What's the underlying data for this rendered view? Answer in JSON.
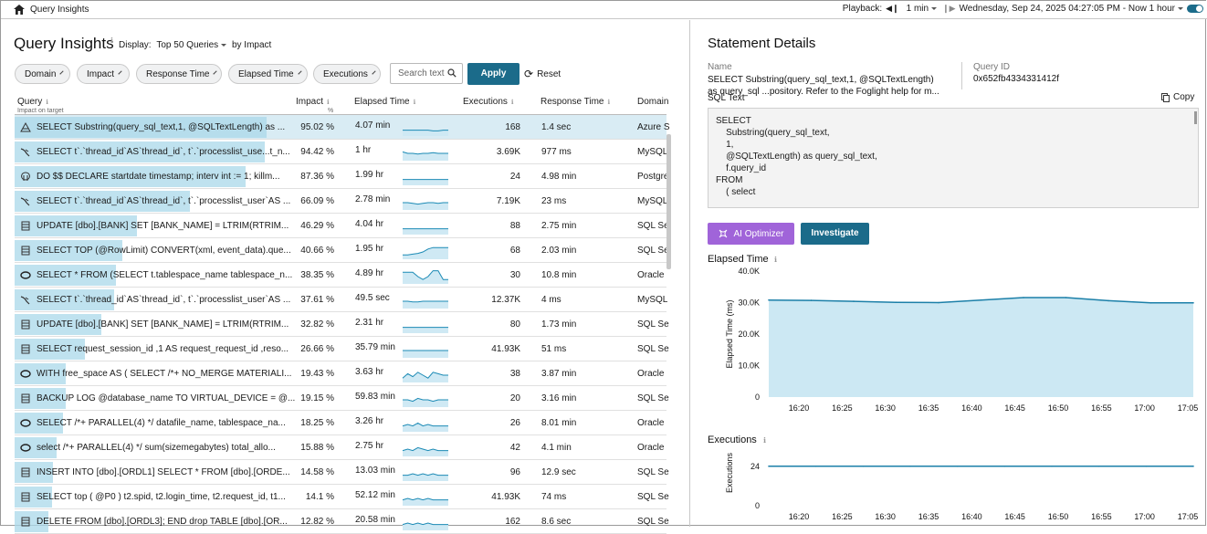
{
  "topbar": {
    "breadcrumb": "Query Insights",
    "playback_label": "Playback:",
    "interval": "1 min",
    "range": "Wednesday, Sep 24, 2025 04:27:05 PM - Now 1 hour"
  },
  "left": {
    "title": "Query Insights",
    "display": "Display:",
    "display_value": "Top 50 Queries",
    "by_value": "by Impact",
    "filters": [
      "Domain",
      "Impact",
      "Response Time",
      "Elapsed Time",
      "Executions"
    ],
    "search_placeholder": "Search text",
    "apply": "Apply",
    "reset": "Reset",
    "columns": {
      "query": "Query",
      "query_sub": "Impact on target",
      "impact": "Impact",
      "impact_sub": "%",
      "elapsed": "Elapsed Time",
      "executions": "Executions",
      "response": "Response Time",
      "domain": "Domain"
    },
    "rows": [
      {
        "icon": "azure-icon",
        "query": "SELECT Substring(query_sql_text,1, @SQLTextLength) as ...",
        "impact": "95.02 %",
        "impact_pct": 95.02,
        "elapsed": "4.07 min",
        "executions": "168",
        "response": "1.4 sec",
        "domain": "Azure S",
        "trend": [
          4,
          4,
          4,
          4,
          4,
          4,
          3.5,
          3.5,
          4,
          4
        ]
      },
      {
        "icon": "mysql-icon",
        "query": "SELECT t`.`thread_id`AS`thread_id`, t`.`processlist_use...t_n...",
        "impact": "94.42 %",
        "impact_pct": 94.42,
        "elapsed": "1 hr",
        "executions": "3.69K",
        "response": "977 ms",
        "domain": "MySQL",
        "trend": [
          6,
          5,
          5,
          4.5,
          5,
          5,
          5.5,
          5,
          5,
          5
        ]
      },
      {
        "icon": "postgres-icon",
        "query": "DO $$ DECLARE startdate timestamp; interv int := 1; killm...",
        "impact": "87.36 %",
        "impact_pct": 87.36,
        "elapsed": "1.99 hr",
        "executions": "24",
        "response": "4.98 min",
        "domain": "Postgre",
        "trend": [
          4,
          4,
          4,
          4,
          4,
          4,
          4,
          4,
          4,
          4
        ]
      },
      {
        "icon": "mysql-icon",
        "query": "SELECT t`.`thread_id`AS`thread_id`, t`.`processlist_user`AS ...",
        "impact": "66.09 %",
        "impact_pct": 66.09,
        "elapsed": "2.78 min",
        "executions": "7.19K",
        "response": "23 ms",
        "domain": "MySQL",
        "trend": [
          5,
          5,
          4.5,
          4,
          4.5,
          5,
          5,
          4.5,
          5,
          5
        ]
      },
      {
        "icon": "sqlserver-icon",
        "query": "UPDATE [dbo].[BANK] SET [BANK_NAME] = LTRIM(RTRIM...",
        "impact": "46.29 %",
        "impact_pct": 46.29,
        "elapsed": "4.04 hr",
        "executions": "88",
        "response": "2.75 min",
        "domain": "SQL Se",
        "trend": [
          4,
          4,
          4,
          4,
          4,
          4,
          4,
          4,
          4,
          4
        ]
      },
      {
        "icon": "sqlserver-icon",
        "query": "SELECT TOP (@RowLimit) CONVERT(xml, event_data).que...",
        "impact": "40.66 %",
        "impact_pct": 40.66,
        "elapsed": "1.95 hr",
        "executions": "68",
        "response": "2.03 min",
        "domain": "SQL Se",
        "trend": [
          3,
          3,
          3.5,
          4,
          5,
          7,
          8,
          8,
          8,
          8
        ]
      },
      {
        "icon": "oracle-icon",
        "query": "SELECT * FROM (SELECT t.tablespace_name tablespace_n...",
        "impact": "38.35 %",
        "impact_pct": 38.35,
        "elapsed": "4.89 hr",
        "executions": "30",
        "response": "10.8 min",
        "domain": "Oracle",
        "trend": [
          8,
          8,
          8,
          5,
          3,
          5,
          9,
          9,
          3,
          3
        ]
      },
      {
        "icon": "mysql-icon",
        "query": "SELECT t`.`thread_id`AS`thread_id`, t`.`processlist_user`AS ...",
        "impact": "37.61 %",
        "impact_pct": 37.61,
        "elapsed": "49.5 sec",
        "executions": "12.37K",
        "response": "4 ms",
        "domain": "MySQL",
        "trend": [
          5,
          5,
          4.5,
          4.5,
          5,
          5,
          5,
          5,
          5,
          5
        ]
      },
      {
        "icon": "sqlserver-icon",
        "query": "UPDATE [dbo].[BANK] SET [BANK_NAME] = LTRIM(RTRIM...",
        "impact": "32.82 %",
        "impact_pct": 32.82,
        "elapsed": "2.31 hr",
        "executions": "80",
        "response": "1.73 min",
        "domain": "SQL Se",
        "trend": [
          4,
          4,
          4,
          4,
          4,
          4,
          4,
          4,
          4,
          4
        ]
      },
      {
        "icon": "sqlserver-icon",
        "query": "SELECT request_session_id ,1 AS request_request_id ,reso...",
        "impact": "26.66 %",
        "impact_pct": 26.66,
        "elapsed": "35.79 min",
        "executions": "41.93K",
        "response": "51 ms",
        "domain": "SQL Se",
        "trend": [
          5,
          5,
          5,
          5,
          5,
          5,
          5,
          5,
          5,
          5
        ]
      },
      {
        "icon": "oracle-icon",
        "query": "WITH free_space AS ( SELECT /*+ NO_MERGE MATERIALI...",
        "impact": "19.43 %",
        "impact_pct": 19.43,
        "elapsed": "3.63 hr",
        "executions": "38",
        "response": "3.87 min",
        "domain": "Oracle",
        "trend": [
          3,
          6,
          4,
          7,
          5,
          3,
          7,
          6,
          5,
          5
        ]
      },
      {
        "icon": "sqlserver-icon",
        "query": "BACKUP LOG @database_name TO VIRTUAL_DEVICE = @...",
        "impact": "19.15 %",
        "impact_pct": 19.15,
        "elapsed": "59.83 min",
        "executions": "20",
        "response": "3.16 min",
        "domain": "SQL Se",
        "trend": [
          5,
          5,
          4,
          6,
          5,
          5,
          4,
          5,
          5,
          5
        ]
      },
      {
        "icon": "oracle-icon",
        "query": "SELECT /*+ PARALLEL(4) */ datafile_name, tablespace_na...",
        "impact": "18.25 %",
        "impact_pct": 18.25,
        "elapsed": "3.26 hr",
        "executions": "26",
        "response": "8.01 min",
        "domain": "Oracle",
        "trend": [
          4,
          5,
          4,
          6,
          4,
          5,
          4,
          4,
          4,
          4
        ]
      },
      {
        "icon": "oracle-icon",
        "query": "select /*+ PARALLEL(4) */ sum(sizemegabytes) total_allo...",
        "impact": "15.88 %",
        "impact_pct": 15.88,
        "elapsed": "2.75 hr",
        "executions": "42",
        "response": "4.1 min",
        "domain": "Oracle",
        "trend": [
          4,
          5,
          4,
          6,
          5,
          4,
          5,
          4,
          4,
          4
        ]
      },
      {
        "icon": "sqlserver-icon",
        "query": "INSERT INTO [dbo].[ORDL1] SELECT * FROM [dbo].[ORDE...",
        "impact": "14.58 %",
        "impact_pct": 14.58,
        "elapsed": "13.03 min",
        "executions": "96",
        "response": "12.9 sec",
        "domain": "SQL Se",
        "trend": [
          4,
          4,
          5,
          4,
          5,
          4,
          5,
          4,
          4,
          4
        ]
      },
      {
        "icon": "sqlserver-icon",
        "query": "SELECT top ( @P0 ) t2.spid, t2.login_time, t2.request_id, t1...",
        "impact": "14.1 %",
        "impact_pct": 14.1,
        "elapsed": "52.12 min",
        "executions": "41.93K",
        "response": "74 ms",
        "domain": "SQL Se",
        "trend": [
          4,
          5,
          4,
          5,
          4,
          5,
          4,
          4,
          4,
          4
        ]
      },
      {
        "icon": "sqlserver-icon",
        "query": "DELETE FROM [dbo].[ORDL3]; END drop TABLE [dbo].[OR...",
        "impact": "12.82 %",
        "impact_pct": 12.82,
        "elapsed": "20.58 min",
        "executions": "162",
        "response": "8.6 sec",
        "domain": "SQL Se",
        "trend": [
          4,
          5,
          4,
          5,
          4,
          5,
          4,
          4,
          4,
          4
        ]
      }
    ]
  },
  "right": {
    "title": "Statement Details",
    "name_label": "Name",
    "name_value": "SELECT Substring(query_sql_text,1, @SQLTextLength) as query_sql ...pository. Refer to the Foglight help for m...",
    "query_id_label": "Query ID",
    "query_id_value": "0x652fb4334331412f",
    "sql_text_label": "SQL Text",
    "copy_label": "Copy",
    "sql_text": "SELECT\n    Substring(query_sql_text,\n    1,\n    @SQLTextLength) as query_sql_text,\n    f.query_id\nFROM\n    ( select",
    "ai_button": "AI Optimizer",
    "investigate_button": "Investigate",
    "elapsed_title": "Elapsed Time",
    "executions_title": "Executions"
  },
  "chart_data": [
    {
      "type": "area",
      "title": "Elapsed Time",
      "ylabel": "Elapsed Time (ms)",
      "ylim": [
        0,
        40000
      ],
      "yticks": [
        "40.0K",
        "30.0K",
        "20.0K",
        "10.0K",
        "0"
      ],
      "yticks_values": [
        40000,
        30000,
        20000,
        10000,
        0
      ],
      "x": [
        "16:18",
        "16:25",
        "16:30",
        "16:35",
        "16:40",
        "16:45",
        "16:50",
        "16:55",
        "17:00",
        "17:05",
        "17:07"
      ],
      "xticks": [
        "16:20",
        "16:25",
        "16:30",
        "16:35",
        "16:40",
        "16:45",
        "16:50",
        "16:55",
        "17:00",
        "17:05"
      ],
      "values": [
        30800,
        30700,
        30400,
        30100,
        30000,
        30800,
        31600,
        31600,
        30600,
        29900,
        29900
      ],
      "color": "#cce8f3",
      "line": "#1b7fa8"
    },
    {
      "type": "line",
      "title": "Executions",
      "ylabel": "Executions",
      "ylim": [
        0,
        40
      ],
      "yticks": [
        "24",
        "0"
      ],
      "yticks_values": [
        24,
        0
      ],
      "xticks": [
        "16:20",
        "16:25",
        "16:30",
        "16:35",
        "16:40",
        "16:45",
        "16:50",
        "16:55",
        "17:00",
        "17:05"
      ],
      "values": [
        24,
        24,
        24,
        24,
        24,
        24,
        24,
        24,
        24,
        24
      ],
      "line": "#1b7fa8"
    }
  ]
}
